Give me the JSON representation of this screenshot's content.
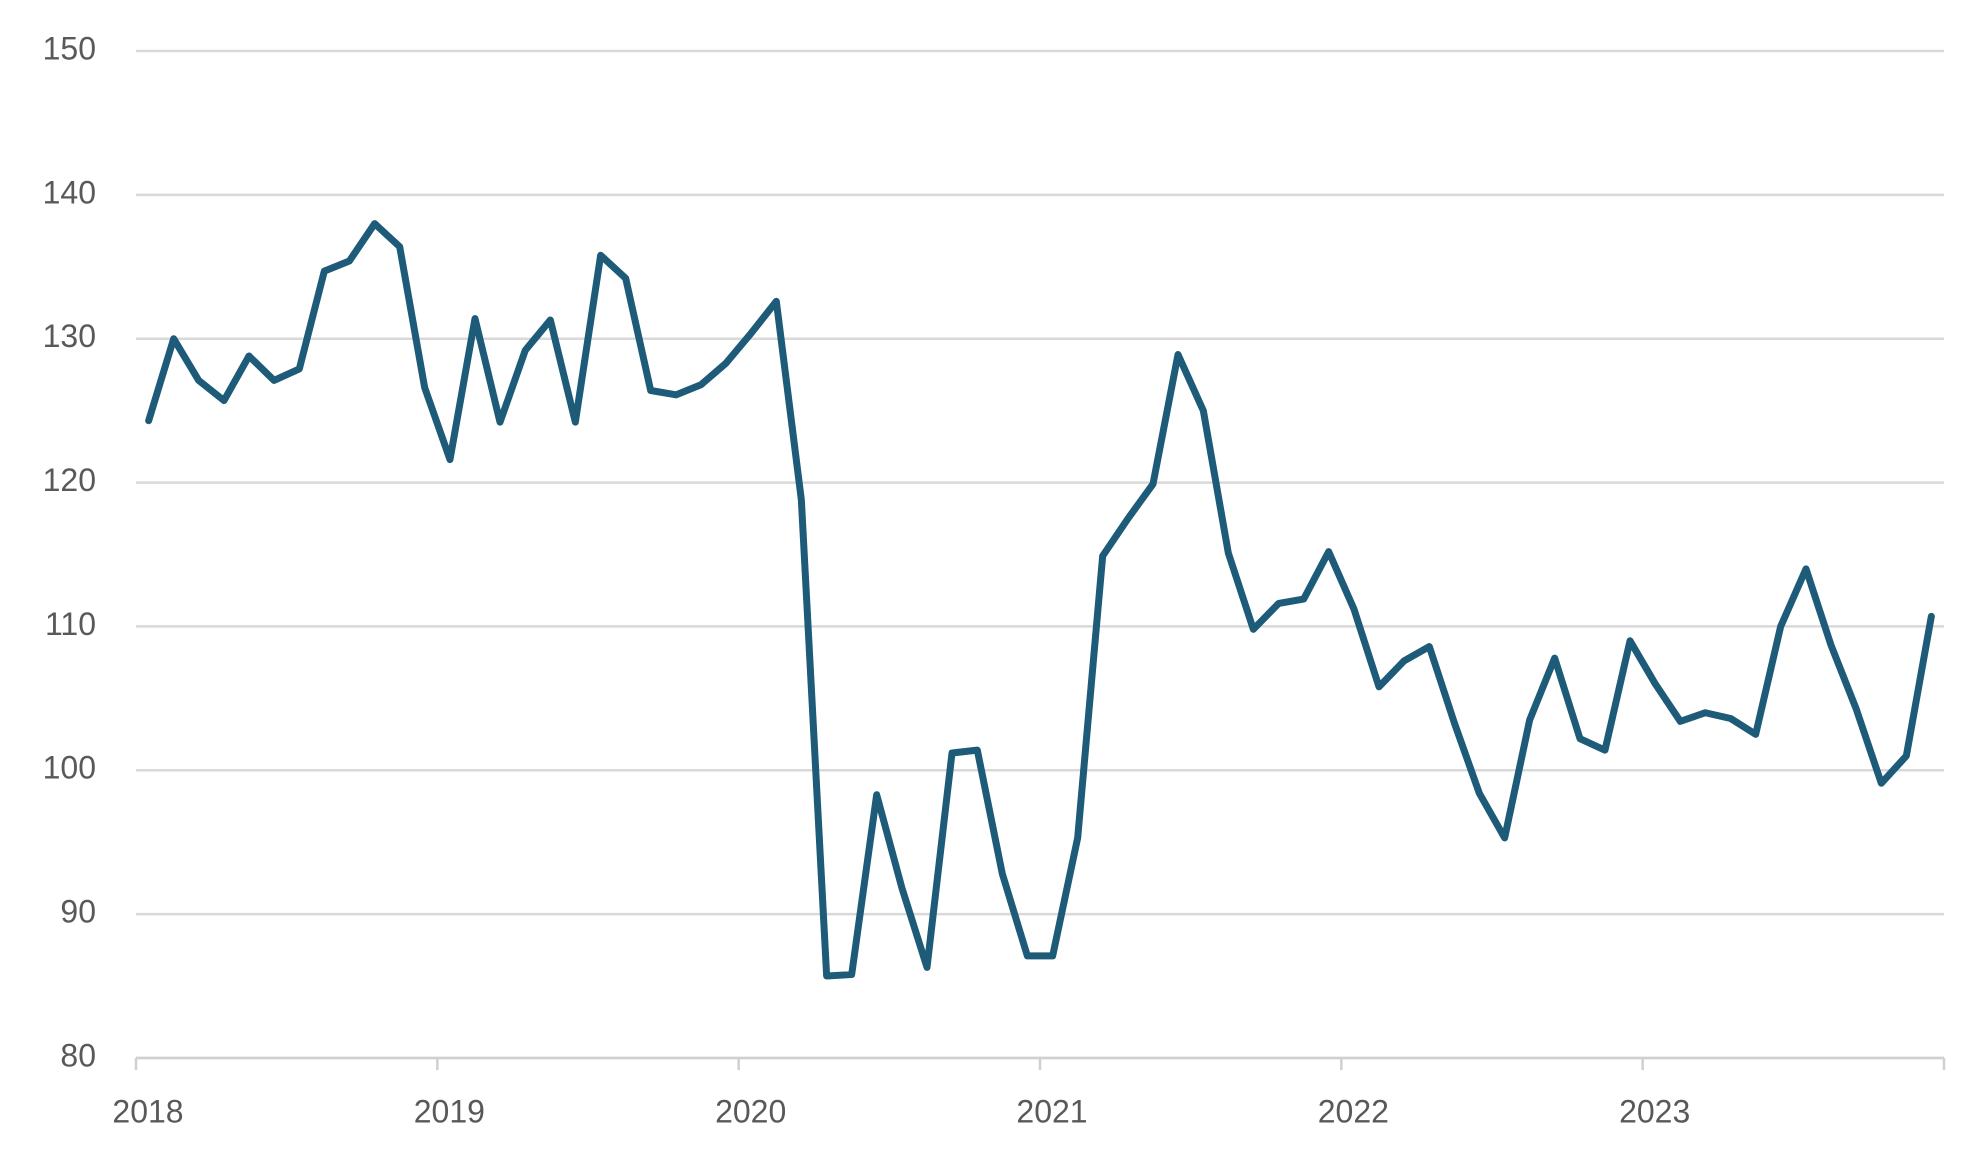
{
  "chart_data": {
    "type": "line",
    "color": "#1d5b79",
    "grid": true,
    "x": [
      2018.042,
      2018.125,
      2018.208,
      2018.292,
      2018.375,
      2018.458,
      2018.542,
      2018.625,
      2018.708,
      2018.792,
      2018.875,
      2018.958,
      2019.042,
      2019.125,
      2019.208,
      2019.292,
      2019.375,
      2019.458,
      2019.542,
      2019.625,
      2019.708,
      2019.792,
      2019.875,
      2019.958,
      2020.042,
      2020.125,
      2020.208,
      2020.292,
      2020.375,
      2020.458,
      2020.542,
      2020.625,
      2020.708,
      2020.792,
      2020.875,
      2020.958,
      2021.042,
      2021.125,
      2021.208,
      2021.292,
      2021.375,
      2021.458,
      2021.542,
      2021.625,
      2021.708,
      2021.792,
      2021.875,
      2021.958,
      2022.042,
      2022.125,
      2022.208,
      2022.292,
      2022.375,
      2022.458,
      2022.542,
      2022.625,
      2022.708,
      2022.792,
      2022.875,
      2022.958,
      2023.042,
      2023.125,
      2023.208,
      2023.292,
      2023.375,
      2023.458,
      2023.542,
      2023.625,
      2023.708,
      2023.792,
      2023.875,
      2023.958
    ],
    "values": [
      124.3,
      130,
      127.1,
      125.7,
      128.8,
      127.1,
      127.9,
      134.7,
      135.4,
      138,
      136.4,
      126.6,
      121.6,
      131.4,
      124.2,
      129.2,
      131.3,
      124.2,
      135.8,
      134.2,
      126.4,
      126.1,
      126.8,
      128.3,
      130.4,
      132.6,
      118.8,
      85.7,
      85.8,
      98.3,
      91.8,
      86.3,
      101.2,
      101.4,
      92.8,
      87.1,
      87.1,
      95.3,
      114.9,
      117.5,
      119.9,
      128.9,
      125.0,
      115.1,
      109.8,
      111.6,
      111.9,
      115.2,
      111.2,
      105.8,
      107.6,
      108.6,
      103.3,
      98.4,
      95.3,
      103.5,
      107.8,
      102.2,
      101.4,
      109.0,
      106.0,
      103.4,
      104.0,
      103.6,
      102.5,
      110.0,
      114.0,
      108.7,
      104.3,
      99.1,
      101.0,
      110.7
    ],
    "xlim": [
      2018,
      2024
    ],
    "xticks": [
      2018,
      2019,
      2020,
      2021,
      2022,
      2023
    ],
    "ylim": [
      80,
      150
    ],
    "yticks": [
      80,
      90,
      100,
      110,
      120,
      130,
      140,
      150
    ]
  }
}
